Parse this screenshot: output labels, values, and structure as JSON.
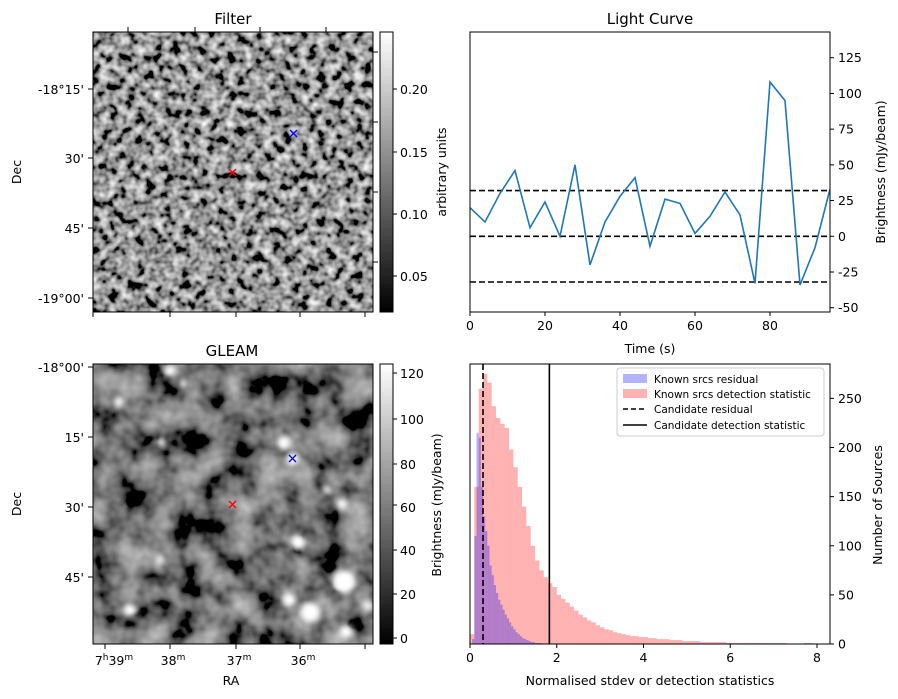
{
  "panels": {
    "filter": {
      "title": "Filter",
      "ylabel": "Dec",
      "yticks": [
        "-18°15'",
        "30'",
        "45'",
        "-19°00'"
      ],
      "colorbar": {
        "label": "arbitrary units",
        "ticks": [
          "0.20",
          "0.15",
          "0.10",
          "0.05"
        ],
        "range": [
          0.02,
          0.24
        ]
      },
      "markers": [
        {
          "name": "candidate",
          "color": "#ff0000",
          "symbol": "x"
        },
        {
          "name": "known-source",
          "color": "#0000ff",
          "symbol": "x"
        }
      ]
    },
    "gleam": {
      "title": "GLEAM",
      "ylabel": "Dec",
      "xlabel": "RA",
      "yticks": [
        "-18°00'",
        "15'",
        "30'",
        "45'"
      ],
      "xticks": [
        {
          "main": "7",
          "s1": "h",
          "mid": "39",
          "s2": "m"
        },
        {
          "main": "38",
          "s1": "",
          "mid": "",
          "s2": "m"
        },
        {
          "main": "37",
          "s1": "",
          "mid": "",
          "s2": "m"
        },
        {
          "main": "36",
          "s1": "",
          "mid": "",
          "s2": "m"
        }
      ],
      "colorbar": {
        "label": "Brightness (mJy/beam)",
        "ticks": [
          "120",
          "100",
          "80",
          "60",
          "40",
          "20",
          "0"
        ],
        "range": [
          -2,
          124
        ]
      },
      "markers": [
        {
          "name": "candidate",
          "color": "#ff0000",
          "symbol": "x"
        },
        {
          "name": "known-source",
          "color": "#0000ff",
          "symbol": "x"
        }
      ]
    }
  },
  "chart_data": [
    {
      "type": "line",
      "title": "Light Curve",
      "xlabel": "Time (s)",
      "ylabel": "Brightness (mJy/beam)",
      "xlim": [
        0,
        96
      ],
      "ylim": [
        -53,
        143
      ],
      "xticks": [
        0,
        20,
        40,
        60,
        80
      ],
      "yticks": [
        -50,
        -25,
        0,
        25,
        50,
        75,
        100,
        125
      ],
      "color": "#1f77b4",
      "x": [
        0,
        4,
        8,
        12,
        16,
        20,
        24,
        28,
        32,
        36,
        40,
        44,
        48,
        52,
        56,
        60,
        64,
        68,
        72,
        76,
        80,
        84,
        88,
        92,
        96
      ],
      "y": [
        20,
        10,
        30,
        46,
        6,
        24,
        0,
        50,
        -20,
        10,
        28,
        41,
        -7,
        26,
        23,
        2,
        14,
        31,
        15,
        -33,
        108,
        95,
        -34,
        -8,
        33
      ],
      "hlines": [
        {
          "y": 32,
          "style": "dashed",
          "color": "#000000"
        },
        {
          "y": 0,
          "style": "dashed",
          "color": "#000000"
        },
        {
          "y": -32,
          "style": "dashed",
          "color": "#000000"
        }
      ],
      "grid": false
    },
    {
      "type": "histogram",
      "xlabel": "Normalised stdev or detection statistics",
      "ylabel": "Number of Sources",
      "xlim": [
        0,
        8.3
      ],
      "ylim": [
        0,
        285
      ],
      "xticks": [
        0,
        2,
        4,
        6,
        8
      ],
      "yticks": [
        0,
        50,
        100,
        150,
        200,
        250
      ],
      "legend_position": "top-right",
      "series": [
        {
          "name": "Known srcs residual",
          "color": "#0000ff",
          "alpha": 0.3,
          "bin_width": 0.05,
          "x_start": 0.05,
          "values": [
            5,
            110,
            215,
            210,
            160,
            130,
            115,
            100,
            80,
            70,
            60,
            52,
            45,
            40,
            35,
            30,
            26,
            22,
            18,
            15,
            12,
            10,
            8,
            6,
            5,
            4,
            3,
            2,
            2,
            1,
            1,
            1
          ]
        },
        {
          "name": "Known srcs detection statistic",
          "color": "#ff0000",
          "alpha": 0.3,
          "bin_width": 0.1,
          "x_start": 0.0,
          "values": [
            10,
            160,
            260,
            275,
            266,
            242,
            230,
            224,
            220,
            198,
            180,
            160,
            140,
            120,
            100,
            85,
            75,
            68,
            62,
            58,
            50,
            46,
            42,
            38,
            34,
            30,
            27,
            24,
            22,
            19,
            17,
            15,
            14,
            12,
            11,
            10,
            9,
            8,
            8,
            7,
            7,
            6,
            6,
            5,
            5,
            5,
            4,
            4,
            4,
            3,
            3,
            3,
            3,
            2,
            2,
            2,
            2,
            2,
            2,
            1,
            1,
            1,
            1,
            1,
            1,
            1,
            1,
            1,
            1,
            1,
            1,
            1,
            1,
            0,
            0,
            0,
            0,
            1,
            1
          ]
        }
      ],
      "vlines": [
        {
          "name": "Candidate residual",
          "x": 0.3,
          "style": "dashed",
          "color": "#000000"
        },
        {
          "name": "Candidate detection statistic",
          "x": 1.83,
          "style": "solid",
          "color": "#000000"
        }
      ]
    }
  ]
}
